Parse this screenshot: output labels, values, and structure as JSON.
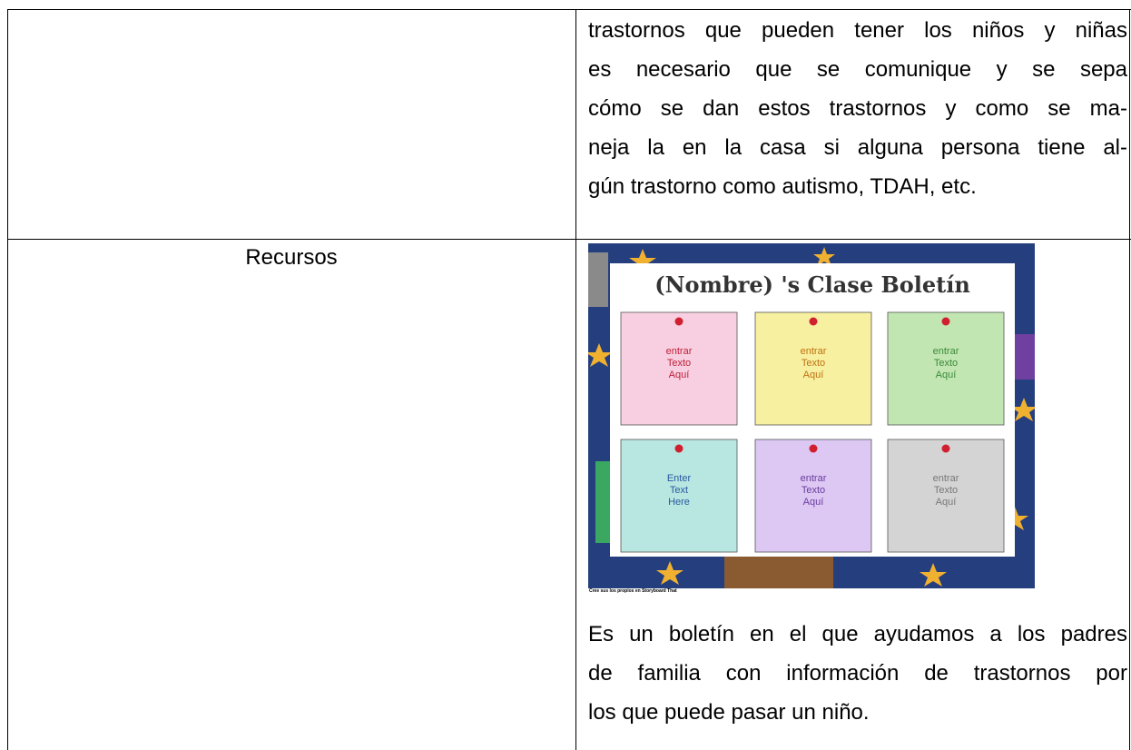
{
  "table": {
    "rows": [
      {
        "right": {
          "lines": [
            "trastornos que pueden tener los niños y niñas",
            "es necesario que se comunique y se sepa",
            "cómo se dan estos trastornos y como se ma-",
            "neja la en la casa si alguna persona tiene al-",
            "gún trastorno como autismo, TDAH, etc."
          ]
        }
      },
      {
        "left": "Recursos",
        "right": {
          "image": {
            "title": "(Nombre) 's Clase Boletín",
            "notes": [
              {
                "lines": [
                  "entrar",
                  "Texto",
                  "Aquí"
                ]
              },
              {
                "lines": [
                  "entrar",
                  "Texto",
                  "Aquí"
                ]
              },
              {
                "lines": [
                  "entrar",
                  "Texto",
                  "Aquí"
                ]
              },
              {
                "lines": [
                  "Enter",
                  "Text",
                  "Here"
                ]
              },
              {
                "lines": [
                  "entrar",
                  "Texto",
                  "Aquí"
                ]
              },
              {
                "lines": [
                  "entrar",
                  "Texto",
                  "Aquí"
                ]
              }
            ],
            "caption": "Cree sus los propios en Storyboard That"
          },
          "lines": [
            "Es un boletín en el que ayudamos a los padres",
            "de familia con información de trastornos por",
            "los que puede pasar un niño."
          ]
        }
      }
    ]
  }
}
